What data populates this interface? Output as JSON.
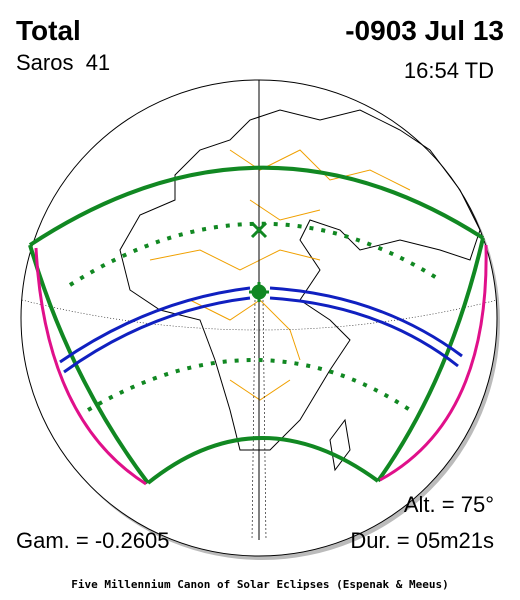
{
  "header": {
    "title": "Total",
    "date": "-0903 Jul 13",
    "saros": "Saros  41",
    "time": "16:54 TD"
  },
  "info": {
    "altitude": "Alt. = 75°",
    "gamma": "Gam. = -0.2605",
    "duration": "Dur. = 05m21s"
  },
  "footer": "Five Millennium Canon of Solar Eclipses (Espenak & Meeus)"
}
